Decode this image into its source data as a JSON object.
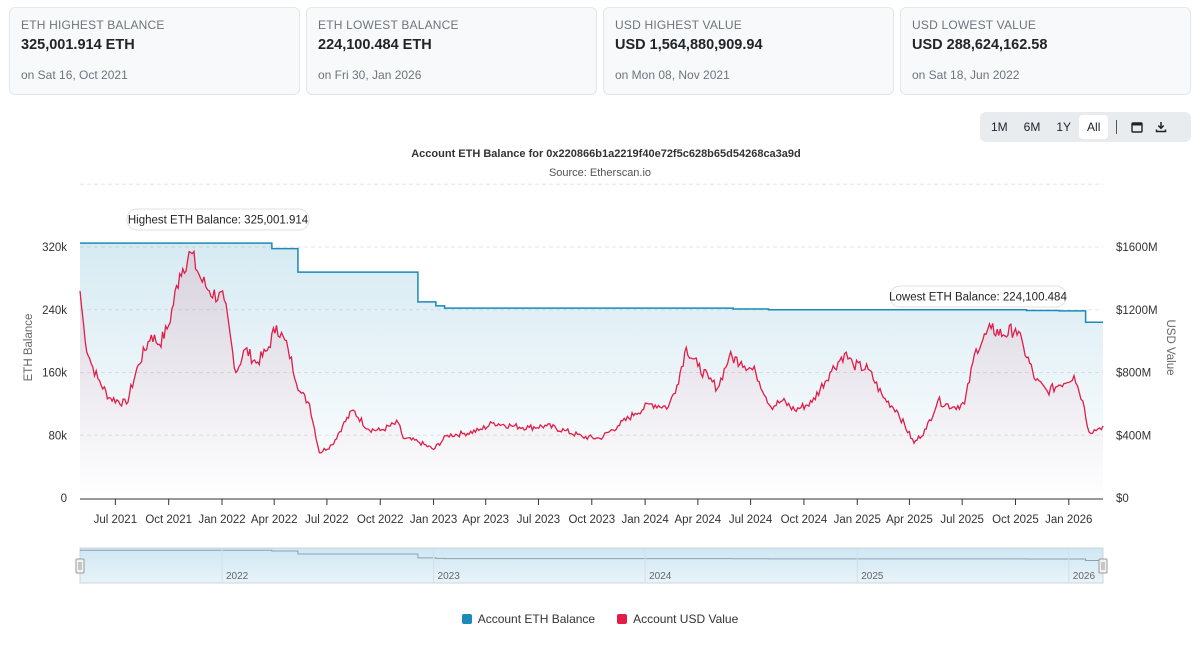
{
  "cards": [
    {
      "label": "ETH HIGHEST BALANCE",
      "value": "325,001.914 ETH",
      "date": "on Sat 16, Oct 2021"
    },
    {
      "label": "ETH LOWEST BALANCE",
      "value": "224,100.484 ETH",
      "date": "on Fri 30, Jan 2026"
    },
    {
      "label": "USD HIGHEST VALUE",
      "value": "USD 1,564,880,909.94",
      "date": "on Mon 08, Nov 2021"
    },
    {
      "label": "USD LOWEST VALUE",
      "value": "USD 288,624,162.58",
      "date": "on Sat 18, Jun 2022"
    }
  ],
  "toolbar": {
    "ranges": [
      "1M",
      "6M",
      "1Y",
      "All"
    ],
    "active": "All",
    "icons": [
      "calendar-icon",
      "download-icon"
    ]
  },
  "colors": {
    "eth": "#1a8bb8",
    "usd": "#e11d48",
    "grid": "#e6e6e6",
    "axis": "#333333"
  },
  "chart_data": {
    "type": "line",
    "title": "Account ETH Balance for 0x220866b1a2219f40e72f5c628b65d54268ca3a9d",
    "subtitle": "Source: Etherscan.io",
    "x_ticks": [
      "Jul 2021",
      "Oct 2021",
      "Jan 2022",
      "Apr 2022",
      "Jul 2022",
      "Oct 2022",
      "Jan 2023",
      "Apr 2023",
      "Jul 2023",
      "Oct 2023",
      "Jan 2024",
      "Apr 2024",
      "Jul 2024",
      "Oct 2024",
      "Jan 2025",
      "Apr 2025",
      "Jul 2025",
      "Oct 2025",
      "Jan 2026"
    ],
    "navigator_ticks": [
      "2022",
      "2023",
      "2024",
      "2025",
      "2026"
    ],
    "y_left": {
      "label": "ETH Balance",
      "ticks": [
        "0",
        "80k",
        "160k",
        "240k",
        "320k"
      ],
      "ylim": [
        0,
        320000
      ]
    },
    "y_right": {
      "label": "USD Value",
      "ticks": [
        "$0",
        "$400M",
        "$800M",
        "$1200M",
        "$1600M"
      ],
      "ylim": [
        0,
        1600000000
      ]
    },
    "annotations": [
      {
        "text": "Highest ETH Balance: 325,001.914"
      },
      {
        "text": "Lowest ETH Balance: 224,100.484"
      }
    ],
    "series": [
      {
        "name": "Account ETH Balance",
        "axis": "left",
        "step": true,
        "points": [
          [
            "2021-05-01",
            325001
          ],
          [
            "2021-08-01",
            325001
          ],
          [
            "2021-11-01",
            325001
          ],
          [
            "2022-02-01",
            325001
          ],
          [
            "2022-03-28",
            318000
          ],
          [
            "2022-05-12",
            288000
          ],
          [
            "2022-09-01",
            288000
          ],
          [
            "2022-12-01",
            288000
          ],
          [
            "2022-12-05",
            250000
          ],
          [
            "2023-01-05",
            245000
          ],
          [
            "2023-01-20",
            242000
          ],
          [
            "2023-06-01",
            242000
          ],
          [
            "2024-01-01",
            242000
          ],
          [
            "2024-06-01",
            241000
          ],
          [
            "2024-08-01",
            240000
          ],
          [
            "2025-01-01",
            240000
          ],
          [
            "2025-06-01",
            240000
          ],
          [
            "2025-10-20",
            239000
          ],
          [
            "2025-12-15",
            238500
          ],
          [
            "2026-01-30",
            224100
          ],
          [
            "2026-03-01",
            224100
          ]
        ]
      },
      {
        "name": "Account USD Value",
        "axis": "right",
        "points": [
          [
            "2021-05-01",
            1320000000
          ],
          [
            "2021-05-10",
            1000000000
          ],
          [
            "2021-05-20",
            860000000
          ],
          [
            "2021-06-01",
            760000000
          ],
          [
            "2021-06-20",
            640000000
          ],
          [
            "2021-07-20",
            600000000
          ],
          [
            "2021-08-10",
            850000000
          ],
          [
            "2021-09-01",
            1040000000
          ],
          [
            "2021-09-15",
            980000000
          ],
          [
            "2021-10-01",
            1100000000
          ],
          [
            "2021-10-20",
            1430000000
          ],
          [
            "2021-11-08",
            1564880910
          ],
          [
            "2021-11-25",
            1400000000
          ],
          [
            "2021-12-10",
            1320000000
          ],
          [
            "2022-01-05",
            1260000000
          ],
          [
            "2022-01-25",
            800000000
          ],
          [
            "2022-02-10",
            950000000
          ],
          [
            "2022-03-01",
            860000000
          ],
          [
            "2022-03-20",
            940000000
          ],
          [
            "2022-04-05",
            1100000000
          ],
          [
            "2022-04-25",
            950000000
          ],
          [
            "2022-05-15",
            680000000
          ],
          [
            "2022-06-01",
            600000000
          ],
          [
            "2022-06-18",
            288624163
          ],
          [
            "2022-07-10",
            340000000
          ],
          [
            "2022-07-28",
            460000000
          ],
          [
            "2022-08-15",
            560000000
          ],
          [
            "2022-09-10",
            440000000
          ],
          [
            "2022-10-01",
            430000000
          ],
          [
            "2022-11-01",
            480000000
          ],
          [
            "2022-11-10",
            380000000
          ],
          [
            "2022-12-05",
            360000000
          ],
          [
            "2023-01-01",
            310000000
          ],
          [
            "2023-01-25",
            400000000
          ],
          [
            "2023-02-20",
            410000000
          ],
          [
            "2023-03-20",
            430000000
          ],
          [
            "2023-04-15",
            480000000
          ],
          [
            "2023-05-15",
            460000000
          ],
          [
            "2023-06-15",
            450000000
          ],
          [
            "2023-07-15",
            460000000
          ],
          [
            "2023-08-15",
            430000000
          ],
          [
            "2023-09-15",
            390000000
          ],
          [
            "2023-10-15",
            380000000
          ],
          [
            "2023-11-15",
            460000000
          ],
          [
            "2023-12-15",
            540000000
          ],
          [
            "2024-01-10",
            600000000
          ],
          [
            "2024-02-10",
            580000000
          ],
          [
            "2024-02-25",
            720000000
          ],
          [
            "2024-03-12",
            960000000
          ],
          [
            "2024-04-01",
            840000000
          ],
          [
            "2024-04-20",
            760000000
          ],
          [
            "2024-05-05",
            700000000
          ],
          [
            "2024-05-25",
            900000000
          ],
          [
            "2024-06-15",
            870000000
          ],
          [
            "2024-07-10",
            800000000
          ],
          [
            "2024-08-05",
            580000000
          ],
          [
            "2024-08-25",
            620000000
          ],
          [
            "2024-09-15",
            560000000
          ],
          [
            "2024-10-15",
            610000000
          ],
          [
            "2024-11-15",
            800000000
          ],
          [
            "2024-12-10",
            920000000
          ],
          [
            "2024-12-25",
            850000000
          ],
          [
            "2025-01-20",
            820000000
          ],
          [
            "2025-02-15",
            640000000
          ],
          [
            "2025-03-10",
            560000000
          ],
          [
            "2025-04-09",
            350000000
          ],
          [
            "2025-04-30",
            440000000
          ],
          [
            "2025-05-20",
            620000000
          ],
          [
            "2025-06-15",
            580000000
          ],
          [
            "2025-07-05",
            600000000
          ],
          [
            "2025-07-25",
            950000000
          ],
          [
            "2025-08-20",
            1080000000
          ],
          [
            "2025-09-10",
            1040000000
          ],
          [
            "2025-10-01",
            1080000000
          ],
          [
            "2025-10-15",
            960000000
          ],
          [
            "2025-11-05",
            750000000
          ],
          [
            "2025-11-25",
            680000000
          ],
          [
            "2025-12-15",
            720000000
          ],
          [
            "2026-01-10",
            780000000
          ],
          [
            "2026-01-25",
            620000000
          ],
          [
            "2026-02-05",
            420000000
          ],
          [
            "2026-02-20",
            440000000
          ],
          [
            "2026-03-01",
            460000000
          ]
        ]
      }
    ]
  }
}
